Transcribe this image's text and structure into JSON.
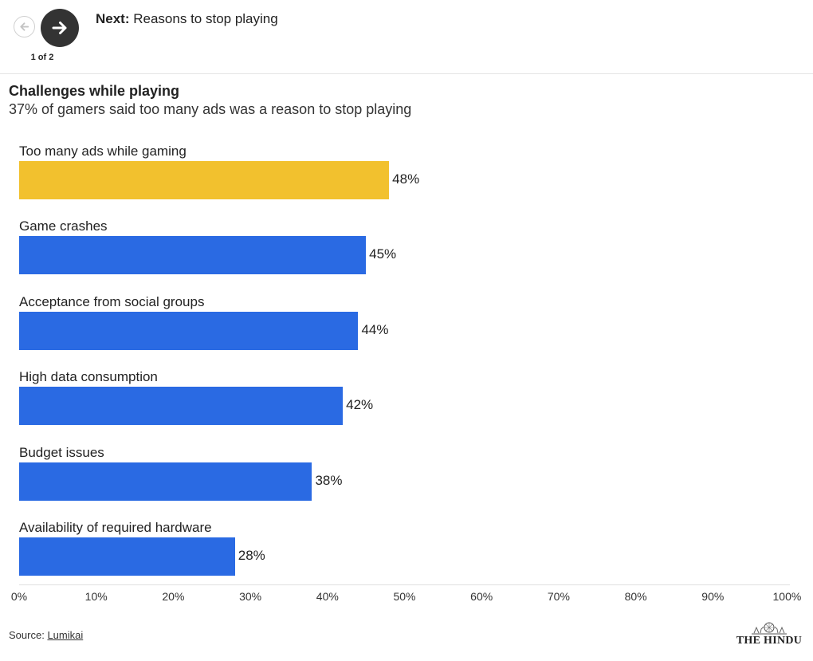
{
  "nav": {
    "next_prefix": "Next:",
    "next_title": "Reasons to stop playing",
    "pager": "1 of 2"
  },
  "chart_data": {
    "type": "bar",
    "orientation": "horizontal",
    "title": "Challenges while playing",
    "subtitle": "37% of gamers said too many ads was a reason to stop playing",
    "categories": [
      "Too many ads while gaming",
      "Game crashes",
      "Acceptance from social groups",
      "High data consumption",
      "Budget issues",
      "Availability of required hardware"
    ],
    "values": [
      48,
      45,
      44,
      42,
      38,
      28
    ],
    "value_labels": [
      "48%",
      "45%",
      "44%",
      "42%",
      "38%",
      "28%"
    ],
    "colors": [
      "#f2c12e",
      "#2a6ae3",
      "#2a6ae3",
      "#2a6ae3",
      "#2a6ae3",
      "#2a6ae3"
    ],
    "xlim": [
      0,
      100
    ],
    "xticks": [
      0,
      10,
      20,
      30,
      40,
      50,
      60,
      70,
      80,
      90,
      100
    ],
    "xtick_labels": [
      "0%",
      "10%",
      "20%",
      "30%",
      "40%",
      "50%",
      "60%",
      "70%",
      "80%",
      "90%",
      "100%"
    ],
    "grid": false,
    "legend": "none"
  },
  "footer": {
    "source_prefix": "Source:",
    "source_link": "Lumikai",
    "logo_text": "THE HINDU"
  },
  "icons": {
    "prev": "arrow-left-icon",
    "next": "arrow-right-icon",
    "logo": "the-hindu-emblem-icon"
  },
  "colors": {
    "highlight": "#f2c12e",
    "bar": "#2a6ae3",
    "nav_button": "#333333"
  }
}
